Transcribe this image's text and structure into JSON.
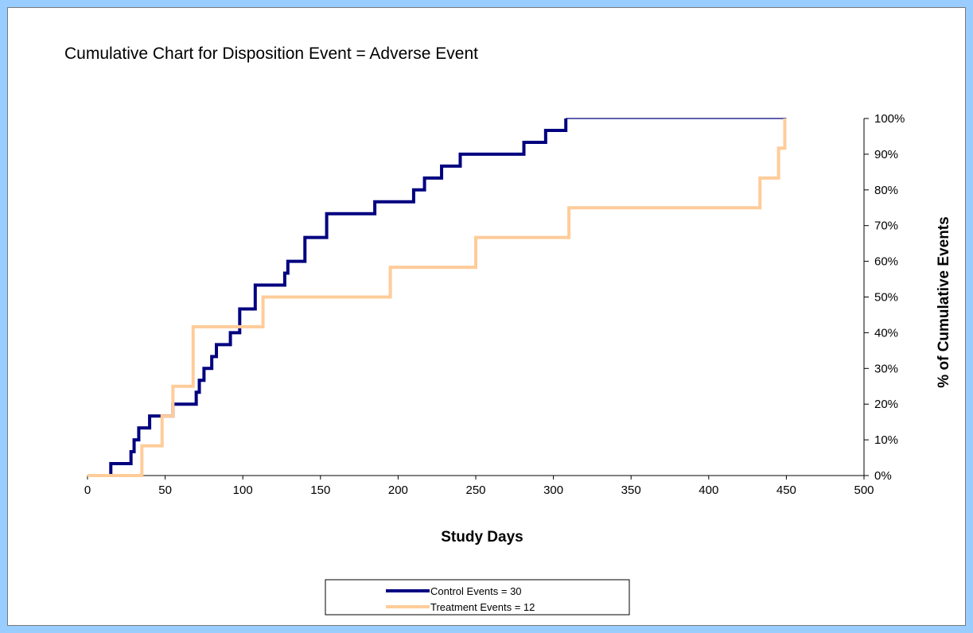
{
  "chart_data": {
    "type": "line",
    "title": "Cumulative Chart for Disposition Event = Adverse Event",
    "xlabel": "Study Days",
    "ylabel": "% of Cumulative Events",
    "xlim": [
      0,
      500
    ],
    "ylim": [
      0,
      100
    ],
    "x_ticks": [
      "0",
      "50",
      "100",
      "150",
      "200",
      "250",
      "300",
      "350",
      "400",
      "450",
      "500"
    ],
    "y_ticks": [
      "0%",
      "10%",
      "20%",
      "30%",
      "40%",
      "50%",
      "60%",
      "70%",
      "80%",
      "90%",
      "100%"
    ],
    "grid": false,
    "step": true,
    "legend_position": "bottom",
    "series": [
      {
        "name": "Control Events = 30",
        "color": "#000080",
        "x": [
          0,
          15,
          28,
          30,
          33,
          40,
          55,
          70,
          72,
          75,
          80,
          83,
          92,
          98,
          108,
          127,
          129,
          140,
          154,
          185,
          210,
          217,
          228,
          232,
          240,
          281,
          295,
          308,
          450
        ],
        "y": [
          0,
          3.33,
          6.67,
          10,
          13.33,
          16.67,
          20,
          23.33,
          26.67,
          30,
          33.33,
          36.67,
          40,
          46.67,
          53.33,
          56.67,
          60,
          66.67,
          73.33,
          76.67,
          80,
          83.33,
          86.67,
          86.67,
          90,
          93.33,
          96.67,
          100,
          100
        ]
      },
      {
        "name": "Treatment Events = 12",
        "color": "#FFCC99",
        "x": [
          0,
          35,
          48,
          55,
          68,
          113,
          195,
          250,
          310,
          433,
          445,
          449
        ],
        "y": [
          0,
          8.33,
          16.67,
          25,
          41.67,
          50,
          58.33,
          66.67,
          75,
          83.33,
          91.67,
          100
        ]
      }
    ]
  }
}
